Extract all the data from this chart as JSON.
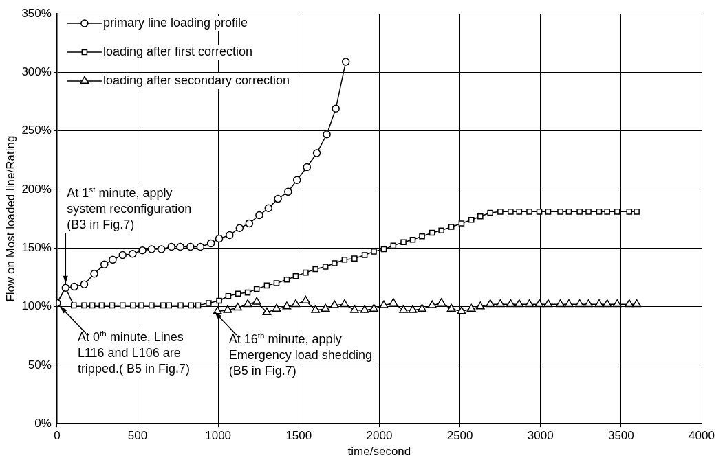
{
  "chart_data": {
    "type": "line",
    "xlabel": "time/second",
    "ylabel": "Flow on Most loaded line/Rating",
    "xlim": [
      0,
      4000
    ],
    "xticks": [
      0,
      500,
      1000,
      1500,
      2000,
      2500,
      3000,
      3500,
      4000
    ],
    "ylim": [
      0,
      350
    ],
    "yticks": [
      {
        "value": 0,
        "label": "0%"
      },
      {
        "value": 50,
        "label": "50%"
      },
      {
        "value": 100,
        "label": "100%"
      },
      {
        "value": 150,
        "label": "150%"
      },
      {
        "value": 200,
        "label": "200%"
      },
      {
        "value": 250,
        "label": "250%"
      },
      {
        "value": 300,
        "label": "300%"
      },
      {
        "value": 350,
        "label": "350%"
      }
    ],
    "grid": true,
    "legend": "top left",
    "line_style": "solid",
    "series": [
      {
        "name": "primary line loading profile",
        "color": "#000000",
        "marker": "circle",
        "x": [
          0,
          53,
          107,
          169,
          231,
          294,
          346,
          407,
          469,
          530,
          587,
          648,
          710,
          765,
          828,
          890,
          955,
          1006,
          1071,
          1133,
          1193,
          1255,
          1312,
          1371,
          1434,
          1489,
          1551,
          1612,
          1674,
          1730,
          1792
        ],
        "values": [
          103,
          116,
          117,
          119,
          128,
          136,
          140,
          144,
          145,
          148,
          149,
          149,
          151,
          151,
          151,
          151,
          154,
          158,
          161,
          167,
          171,
          178,
          184,
          192,
          198,
          208,
          219,
          231,
          247,
          269,
          309
        ]
      },
      {
        "name": "loading after first correction",
        "color": "#000000",
        "marker": "square",
        "x": [
          0,
          53,
          104,
          169,
          219,
          277,
          342,
          407,
          472,
          523,
          587,
          659,
          695,
          767,
          832,
          876,
          941,
          1006,
          1063,
          1124,
          1183,
          1239,
          1302,
          1362,
          1426,
          1481,
          1543,
          1604,
          1666,
          1722,
          1784,
          1846,
          1909,
          1966,
          2028,
          2087,
          2150,
          2207,
          2265,
          2328,
          2385,
          2447,
          2510,
          2571,
          2627,
          2688,
          2751,
          2815,
          2868,
          2931,
          2993,
          3048,
          3123,
          3176,
          3243,
          3298,
          3364,
          3414,
          3476,
          3551,
          3597
        ],
        "values": [
          103,
          116,
          101,
          101,
          101,
          101,
          101,
          101,
          101,
          101,
          101,
          101,
          101,
          101,
          101,
          101,
          103,
          105,
          109,
          111,
          112,
          115,
          118,
          120,
          123,
          126,
          129,
          132,
          134,
          137,
          140,
          141,
          144,
          147,
          149,
          152,
          155,
          157,
          160,
          163,
          165,
          168,
          171,
          174,
          177,
          180,
          181,
          181,
          181,
          181,
          181,
          181,
          181,
          181,
          181,
          181,
          181,
          181,
          181,
          181,
          181
        ]
      },
      {
        "name": "loading after secondary correction",
        "color": "#000000",
        "marker": "triangle",
        "x": [
          996,
          1059,
          1121,
          1183,
          1239,
          1302,
          1362,
          1426,
          1481,
          1543,
          1604,
          1666,
          1722,
          1784,
          1846,
          1909,
          1966,
          2028,
          2087,
          2150,
          2207,
          2265,
          2328,
          2385,
          2447,
          2510,
          2571,
          2627,
          2688,
          2751,
          2815,
          2868,
          2931,
          2993,
          3048,
          3123,
          3176,
          3243,
          3298,
          3364,
          3414,
          3476,
          3551,
          3597
        ],
        "values": [
          96,
          97,
          99,
          102,
          104,
          95,
          98,
          100,
          102,
          105,
          97,
          98,
          101,
          102,
          97,
          97,
          98,
          101,
          103,
          97,
          97,
          98,
          101,
          103,
          98,
          96,
          98,
          100,
          102,
          102,
          102,
          102,
          102,
          102,
          102,
          102,
          102,
          102,
          102,
          102,
          102,
          102,
          102,
          102
        ]
      }
    ],
    "annotations": [
      {
        "text": "At 1$^{st}$ minute, apply\nsystem reconfiguration\n(B3 in Fig.7)",
        "x": 53,
        "y": 116
      },
      {
        "text": "At 0$^{th}$ minute, Lines\nL116 and L106 are\ntripped.( B5 in Fig.7)",
        "x": 0,
        "y": 103
      },
      {
        "text": "At 16$^{th}$ minute, apply\nEmergency load shedding\n(B5 in Fig.7)",
        "x": 960,
        "y": 98
      }
    ]
  }
}
